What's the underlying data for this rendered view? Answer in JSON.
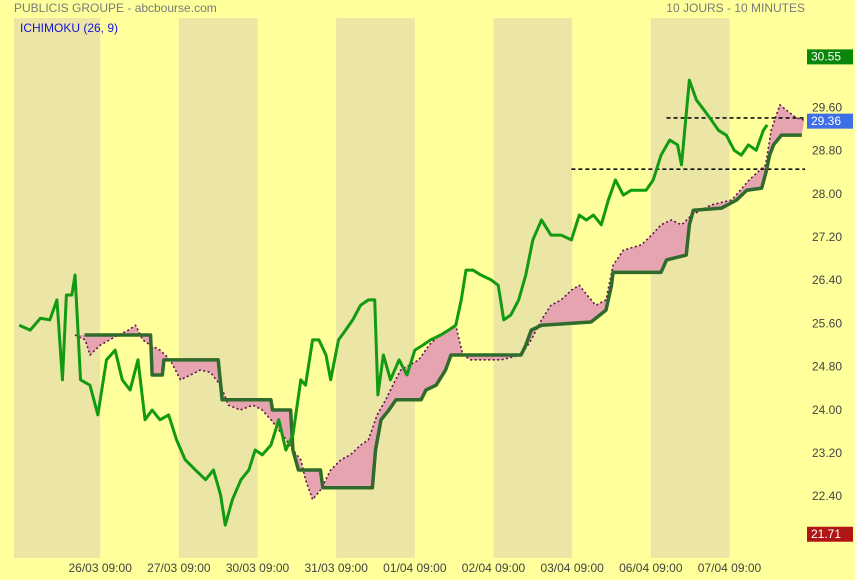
{
  "chart_data": {
    "type": "line",
    "title": "PUBLICIS GROUPE - abcbourse.com",
    "subtitle": "10 JOURS - 10 MINUTES",
    "indicator": "ICHIMOKU (26, 9)",
    "xlim": [
      -0.096,
      9.96
    ],
    "ylim": [
      21.27,
      31.27
    ],
    "xticks": [
      {
        "value": 1,
        "label": "26/03 09:00"
      },
      {
        "value": 2,
        "label": "27/03 09:00"
      },
      {
        "value": 3,
        "label": "30/03 09:00"
      },
      {
        "value": 4,
        "label": "31/03 09:00"
      },
      {
        "value": 5,
        "label": "01/04 09:00"
      },
      {
        "value": 6,
        "label": "02/04 09:00"
      },
      {
        "value": 7,
        "label": "03/04 09:00"
      },
      {
        "value": 8,
        "label": "06/04 09:00"
      },
      {
        "value": 9,
        "label": "07/04 09:00"
      }
    ],
    "yticks": [
      {
        "value": 22.4,
        "label": "22.40"
      },
      {
        "value": 23.2,
        "label": "23.20"
      },
      {
        "value": 24,
        "label": "24.00"
      },
      {
        "value": 24.8,
        "label": "24.80"
      },
      {
        "value": 25.6,
        "label": "25.60"
      },
      {
        "value": 26.4,
        "label": "26.40"
      },
      {
        "value": 27.2,
        "label": "27.20"
      },
      {
        "value": 28,
        "label": "28.00"
      },
      {
        "value": 28.8,
        "label": "28.80"
      },
      {
        "value": 29.6,
        "label": "29.60"
      }
    ],
    "bands": true,
    "series": [
      {
        "color": "#129a12",
        "style": "solid",
        "x": [
          -0.03,
          0.11,
          0.24,
          0.36,
          0.45,
          0.52,
          0.57,
          0.64,
          0.68,
          0.75,
          0.87,
          0.97,
          1.08,
          1.19,
          1.28,
          1.38,
          1.48,
          1.57,
          1.66,
          1.76,
          1.87,
          1.97,
          2.08,
          2.21,
          2.34,
          2.44,
          2.53,
          2.59,
          2.68,
          2.79,
          2.89,
          2.97,
          3.06,
          3.17,
          3.27,
          3.36,
          3.45,
          3.55,
          3.61,
          3.7,
          3.78,
          3.87,
          3.93,
          4.03,
          4.12,
          4.21,
          4.31,
          4.41,
          4.49,
          4.53,
          4.6,
          4.69,
          4.8,
          4.9,
          5.0,
          5.1,
          5.2,
          5.33,
          5.43,
          5.52,
          5.59,
          5.65,
          5.74,
          5.84,
          5.97,
          6.06,
          6.13,
          6.22,
          6.32,
          6.41,
          6.5,
          6.61,
          6.73,
          6.86,
          6.99,
          7.09,
          7.18,
          7.27,
          7.37,
          7.46,
          7.55,
          7.65,
          7.75,
          7.94,
          8.03,
          8.13,
          8.24,
          8.34,
          8.39,
          8.49,
          8.58,
          8.68,
          8.77,
          8.86,
          8.96,
          9.06,
          9.15,
          9.24,
          9.34,
          9.43,
          9.48
        ],
        "values": [
          25.58,
          25.49,
          25.71,
          25.68,
          26.05,
          24.57,
          26.14,
          26.14,
          26.51,
          24.57,
          24.47,
          23.92,
          24.94,
          25.12,
          24.57,
          24.38,
          24.94,
          23.83,
          24.01,
          23.83,
          23.92,
          23.46,
          23.09,
          22.9,
          22.72,
          22.9,
          22.44,
          21.88,
          22.35,
          22.72,
          22.9,
          23.27,
          23.18,
          23.36,
          23.83,
          23.27,
          23.55,
          24.57,
          24.47,
          25.31,
          25.31,
          25.03,
          24.57,
          25.31,
          25.49,
          25.68,
          25.95,
          26.05,
          26.05,
          24.29,
          25.03,
          24.57,
          24.94,
          24.66,
          25.12,
          25.21,
          25.31,
          25.4,
          25.49,
          25.58,
          26.05,
          26.6,
          26.6,
          26.51,
          26.42,
          26.32,
          25.68,
          25.77,
          26.05,
          26.51,
          27.16,
          27.53,
          27.25,
          27.25,
          27.16,
          27.62,
          27.53,
          27.62,
          27.44,
          27.9,
          28.27,
          27.99,
          28.08,
          28.08,
          28.27,
          28.73,
          29.01,
          28.92,
          28.55,
          30.12,
          29.75,
          29.56,
          29.38,
          29.19,
          29.1,
          28.82,
          28.73,
          28.92,
          28.82,
          29.19,
          29.29
        ]
      },
      {
        "color": "#5a1748",
        "style": "dotted",
        "x": [
          0.68,
          0.81,
          0.87,
          1.0,
          1.23,
          1.36,
          1.45,
          1.54,
          1.64,
          1.76,
          1.89,
          2.02,
          2.15,
          2.27,
          2.4,
          2.53,
          2.63,
          2.78,
          2.94,
          3.06,
          3.17,
          3.32,
          3.45,
          3.55,
          3.61,
          3.7,
          3.8,
          3.93,
          4.06,
          4.18,
          4.31,
          4.41,
          4.52,
          4.63,
          4.72,
          4.82,
          5.05,
          5.18,
          5.31,
          5.52,
          5.61,
          5.71,
          6.1,
          6.35,
          6.48,
          6.61,
          6.73,
          6.86,
          6.99,
          7.09,
          7.19,
          7.3,
          7.43,
          7.52,
          7.65,
          7.88,
          8.01,
          8.13,
          8.26,
          8.39,
          8.52,
          8.77,
          9.03,
          9.25,
          9.46,
          9.53,
          9.64,
          9.85,
          9.95
        ],
        "values": [
          25.4,
          25.31,
          25.03,
          25.21,
          25.4,
          25.49,
          25.58,
          25.31,
          25.21,
          25.12,
          24.94,
          24.57,
          24.66,
          24.75,
          24.71,
          24.47,
          24.1,
          24.01,
          24.1,
          24.01,
          23.83,
          23.55,
          23.27,
          23.09,
          22.72,
          22.35,
          22.53,
          22.9,
          23.09,
          23.18,
          23.36,
          23.46,
          23.92,
          24.2,
          24.47,
          24.75,
          24.94,
          25.21,
          25.4,
          25.58,
          25.03,
          24.94,
          24.94,
          25.03,
          25.31,
          25.68,
          25.95,
          26.05,
          26.23,
          26.32,
          26.14,
          25.95,
          26.05,
          26.69,
          26.97,
          27.07,
          27.25,
          27.44,
          27.53,
          27.44,
          27.62,
          27.81,
          27.9,
          28.27,
          28.55,
          29.19,
          29.66,
          29.42,
          29.38
        ]
      },
      {
        "color": "#2f6b2b",
        "style": "thick",
        "x": [
          0.8,
          1.64,
          1.66,
          1.79,
          1.81,
          2.5,
          2.55,
          3.17,
          3.19,
          3.42,
          3.45,
          3.52,
          3.8,
          3.83,
          4.46,
          4.5,
          4.57,
          4.67,
          4.76,
          5.08,
          5.14,
          5.27,
          5.39,
          5.46,
          6.35,
          6.41,
          6.48,
          6.61,
          7.24,
          7.43,
          7.5,
          7.52,
          8.13,
          8.2,
          8.45,
          8.49,
          8.54,
          8.9,
          9.09,
          9.22,
          9.41,
          9.47,
          9.51,
          9.56,
          9.66,
          9.92
        ],
        "values": [
          25.4,
          25.4,
          24.66,
          24.66,
          24.94,
          24.94,
          24.2,
          24.2,
          24.01,
          24.01,
          23.27,
          22.9,
          22.9,
          22.57,
          22.57,
          23.27,
          23.83,
          24.01,
          24.2,
          24.2,
          24.38,
          24.47,
          24.75,
          25.03,
          25.03,
          25.21,
          25.49,
          25.58,
          25.64,
          25.86,
          26.32,
          26.56,
          26.56,
          26.79,
          26.88,
          27.44,
          27.71,
          27.75,
          27.9,
          28.08,
          28.12,
          28.45,
          28.73,
          28.92,
          29.1,
          29.1
        ]
      }
    ],
    "cloud": {
      "between": [
        1,
        2
      ],
      "color": "#e6a3b0"
    },
    "levels": [
      {
        "value": 29.42,
        "from": 8.2,
        "color": "#111111"
      },
      {
        "value": 28.47,
        "from": 6.99,
        "color": "#111111"
      }
    ],
    "markers": [
      {
        "value": 30.55,
        "color": "#0a860a"
      },
      {
        "value": 29.36,
        "color": "#3d6ee8"
      },
      {
        "value": 21.71,
        "color": "#b01616"
      }
    ]
  }
}
